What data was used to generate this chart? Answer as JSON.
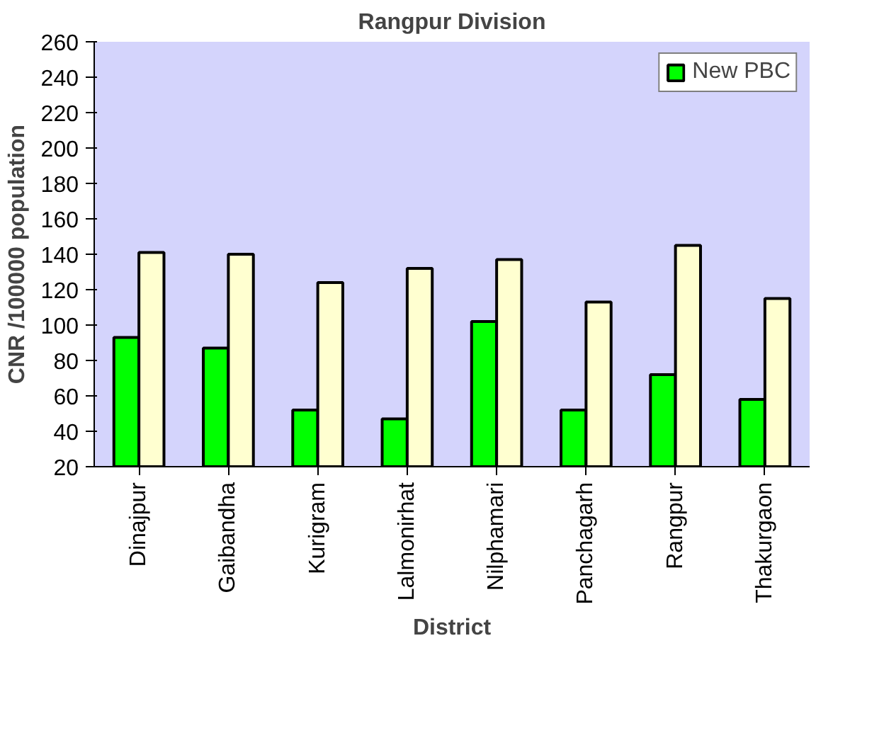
{
  "chart_data": {
    "type": "bar",
    "title": "Rangpur Division",
    "xlabel": "District",
    "ylabel": "CNR /100000 population",
    "categories": [
      "Dinajpur",
      "Gaibandha",
      "Kurigram",
      "Lalmonirhat",
      "Nilphamari",
      "Panchagarh",
      "Rangpur",
      "Thakurgaon"
    ],
    "series": [
      {
        "name": "New PBC",
        "color": "#00ff00",
        "values": [
          93,
          87,
          52,
          47,
          102,
          52,
          72,
          58
        ]
      },
      {
        "color": "#ffffd0",
        "values": [
          141,
          140,
          124,
          132,
          137,
          113,
          145,
          115
        ]
      }
    ],
    "ylim": [
      20,
      260
    ],
    "yticks": [
      20,
      40,
      60,
      80,
      100,
      120,
      140,
      160,
      180,
      200,
      220,
      240,
      260
    ],
    "grid": false,
    "legend": "top right"
  }
}
